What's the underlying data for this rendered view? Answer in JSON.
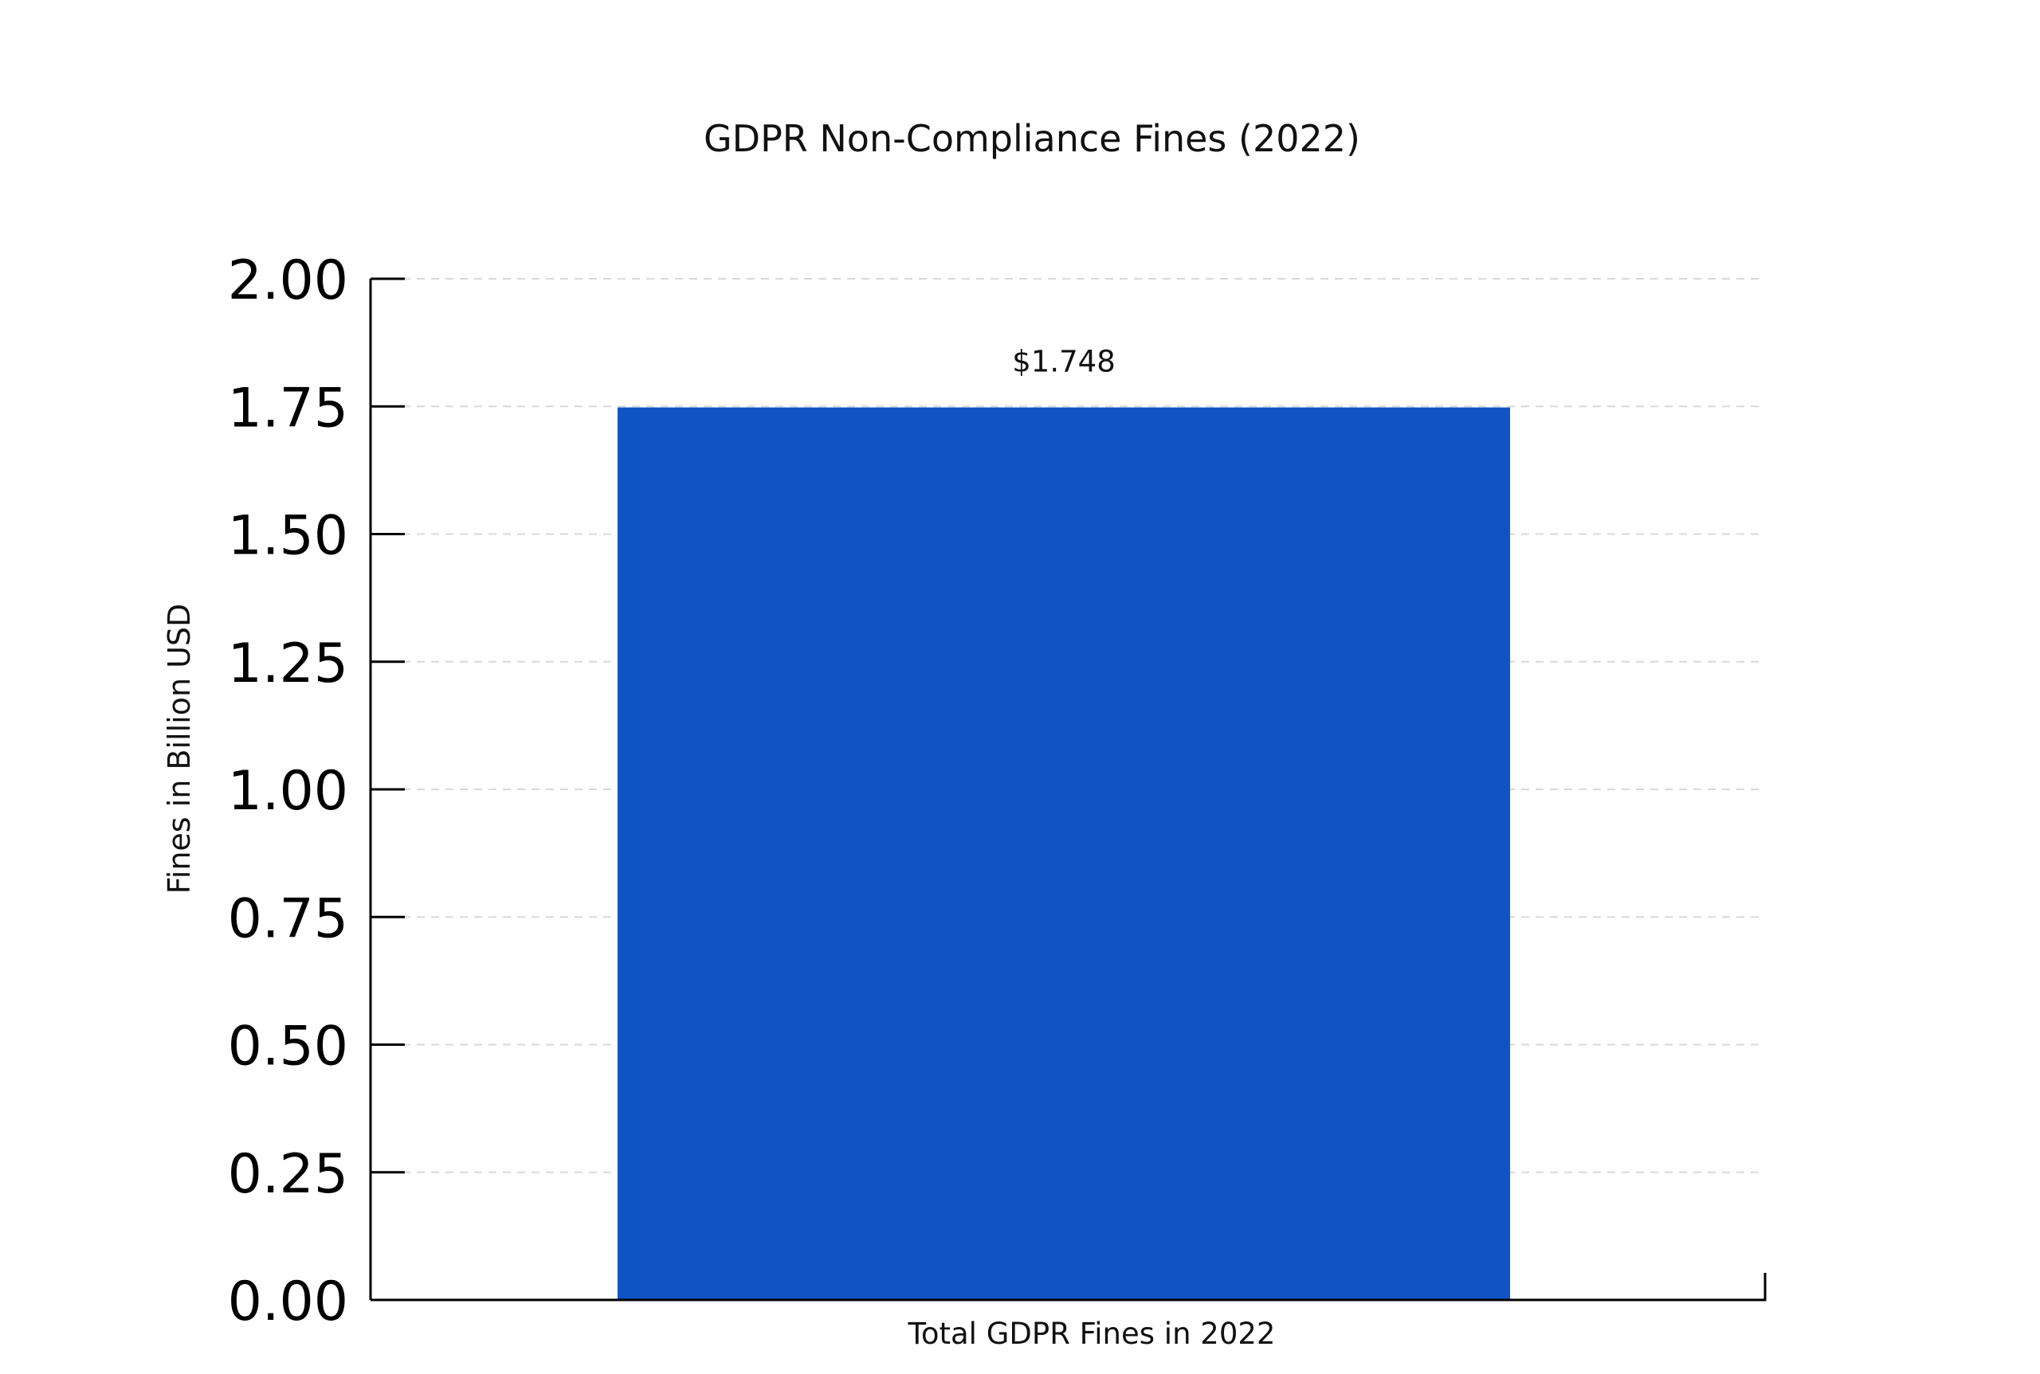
{
  "chart_data": {
    "type": "bar",
    "title": "GDPR Non-Compliance Fines (2022)",
    "xlabel": "",
    "ylabel": "Fines in Billion USD",
    "categories": [
      "Total GDPR Fines in 2022"
    ],
    "values": [
      1.748
    ],
    "data_labels": [
      "$1.748"
    ],
    "ylim": [
      0,
      2
    ],
    "yticks": [
      "0.00",
      "0.25",
      "0.50",
      "0.75",
      "1.00",
      "1.25",
      "1.50",
      "1.75",
      "2.00"
    ],
    "ytick_values": [
      0,
      0.25,
      0.5,
      0.75,
      1.0,
      1.25,
      1.5,
      1.75,
      2.0
    ],
    "grid": true,
    "legend": "none",
    "bar_color": "#1053c4"
  }
}
